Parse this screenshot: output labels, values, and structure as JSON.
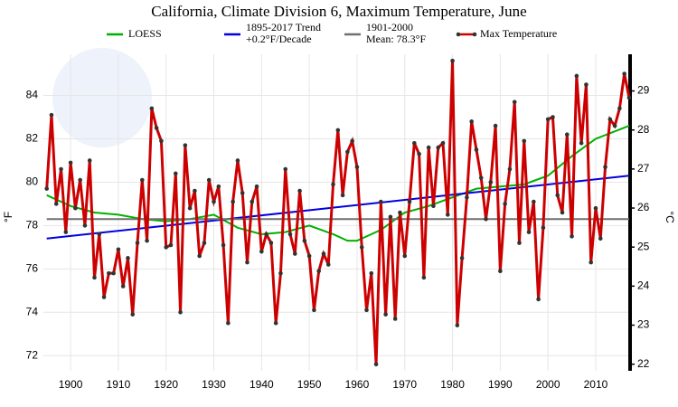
{
  "chart_data": {
    "type": "line",
    "title": "California, Climate Division 6, Maximum Temperature, June",
    "ylabel": "°F",
    "y2label": "°C",
    "xlim": [
      1894.3,
      2017.2
    ],
    "xticks": [
      1900,
      1910,
      1920,
      1930,
      1940,
      1950,
      1960,
      1970,
      1980,
      1990,
      2000,
      2010
    ],
    "ylim": [
      71.3,
      85.9
    ],
    "yticks": [
      72,
      74,
      76,
      78,
      80,
      82,
      84
    ],
    "y2lim": [
      21.83,
      29.94
    ],
    "y2ticks": [
      22,
      23,
      24,
      25,
      26,
      27,
      28,
      29
    ],
    "grid": true,
    "series": [
      {
        "name": "LOESS",
        "color": "#00b000",
        "markers": false,
        "x": [
          1895,
          1900,
          1905,
          1910,
          1915,
          1920,
          1925,
          1930,
          1935,
          1940,
          1945,
          1950,
          1955,
          1958,
          1960,
          1965,
          1970,
          1975,
          1980,
          1985,
          1990,
          1995,
          2000,
          2005,
          2010,
          2017
        ],
        "values": [
          79.4,
          78.9,
          78.6,
          78.5,
          78.3,
          78.2,
          78.3,
          78.5,
          77.9,
          77.6,
          77.7,
          78.0,
          77.6,
          77.3,
          77.3,
          77.8,
          78.6,
          78.9,
          79.3,
          79.7,
          79.8,
          79.9,
          80.3,
          81.2,
          82.0,
          82.6
        ]
      },
      {
        "name": "1895-2017 Trend\n+0.2°F/Decade",
        "color": "#0000e0",
        "markers": false,
        "x": [
          1895,
          2017
        ],
        "values": [
          77.4,
          80.3
        ]
      },
      {
        "name": "1901-2000\nMean: 78.3°F",
        "color": "#707070",
        "markers": false,
        "x": [
          1895,
          2017
        ],
        "values": [
          78.3,
          78.3
        ]
      },
      {
        "name": "Max Temperature",
        "color": "#cc0000",
        "markers": true,
        "x": [
          1895,
          1896,
          1897,
          1898,
          1899,
          1900,
          1901,
          1902,
          1903,
          1904,
          1905,
          1906,
          1907,
          1908,
          1909,
          1910,
          1911,
          1912,
          1913,
          1914,
          1915,
          1916,
          1917,
          1918,
          1919,
          1920,
          1921,
          1922,
          1923,
          1924,
          1925,
          1926,
          1927,
          1928,
          1929,
          1930,
          1931,
          1932,
          1933,
          1934,
          1935,
          1936,
          1937,
          1938,
          1939,
          1940,
          1941,
          1942,
          1943,
          1944,
          1945,
          1946,
          1947,
          1948,
          1949,
          1950,
          1951,
          1952,
          1953,
          1954,
          1955,
          1956,
          1957,
          1958,
          1959,
          1960,
          1961,
          1962,
          1963,
          1964,
          1965,
          1966,
          1967,
          1968,
          1969,
          1970,
          1971,
          1972,
          1973,
          1974,
          1975,
          1976,
          1977,
          1978,
          1979,
          1980,
          1981,
          1982,
          1983,
          1984,
          1985,
          1986,
          1987,
          1988,
          1989,
          1990,
          1991,
          1992,
          1993,
          1994,
          1995,
          1996,
          1997,
          1998,
          1999,
          2000,
          2001,
          2002,
          2003,
          2004,
          2005,
          2006,
          2007,
          2008,
          2009,
          2010,
          2011,
          2012,
          2013,
          2014,
          2015,
          2016,
          2017
        ],
        "values": [
          79.7,
          83.1,
          79.0,
          80.6,
          77.7,
          80.9,
          78.8,
          80.1,
          78.0,
          81.0,
          75.6,
          77.6,
          74.7,
          75.8,
          75.8,
          76.9,
          75.2,
          76.5,
          73.9,
          77.2,
          80.1,
          77.3,
          83.4,
          82.5,
          81.9,
          77.0,
          77.1,
          80.4,
          74.0,
          81.7,
          78.8,
          79.6,
          76.6,
          77.2,
          80.1,
          79.1,
          79.8,
          77.1,
          73.5,
          79.1,
          81.0,
          79.5,
          76.3,
          79.1,
          79.8,
          76.8,
          77.6,
          77.2,
          73.5,
          75.8,
          80.6,
          77.6,
          76.7,
          79.6,
          77.3,
          76.6,
          74.1,
          75.9,
          76.7,
          76.2,
          79.9,
          82.4,
          79.4,
          81.4,
          81.9,
          80.7,
          77.0,
          74.1,
          75.8,
          71.6,
          79.1,
          73.9,
          78.4,
          73.7,
          78.6,
          76.6,
          79.1,
          81.8,
          81.3,
          75.6,
          81.6,
          78.9,
          81.6,
          81.8,
          78.5,
          85.6,
          73.4,
          76.5,
          79.3,
          82.8,
          81.5,
          80.2,
          78.3,
          80.0,
          82.6,
          75.9,
          79.0,
          80.6,
          83.7,
          77.2,
          81.9,
          77.7,
          79.1,
          74.6,
          77.9,
          82.9,
          83.0,
          79.4,
          78.6,
          82.2,
          77.5,
          84.9,
          81.8,
          84.5,
          76.3,
          78.8,
          77.4,
          80.7,
          82.9,
          82.6,
          83.4,
          85.0,
          83.9
        ]
      }
    ]
  }
}
